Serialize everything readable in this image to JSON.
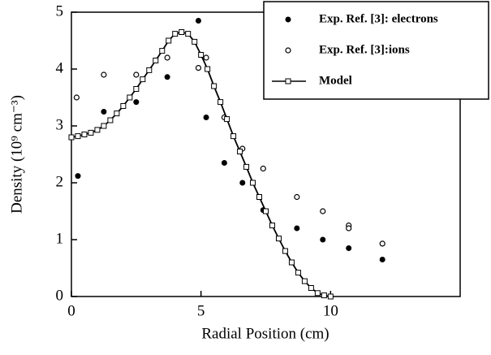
{
  "chart_data": {
    "type": "scatter",
    "xlabel": "Radial Position (cm)",
    "ylabel": "Density (10⁹ cm⁻³)",
    "xlim": [
      0,
      15
    ],
    "xticks": [
      0,
      5,
      10
    ],
    "ylim": [
      0,
      5
    ],
    "yticks": [
      0,
      1,
      2,
      3,
      4,
      5
    ],
    "legend": "upper right",
    "series": [
      {
        "name": "Exp. Ref. [3]: electrons",
        "color": "#000000",
        "marker": "filled-circle",
        "x": [
          0.25,
          1.25,
          2.5,
          3.7,
          4.9,
          5.2,
          5.9,
          6.6,
          7.4,
          8.7,
          9.7,
          10.7,
          12.0
        ],
        "values": [
          2.12,
          3.25,
          3.42,
          3.86,
          4.85,
          3.15,
          2.35,
          2.0,
          1.52,
          1.2,
          1.0,
          0.85,
          0.65
        ]
      },
      {
        "name": "Exp. Ref. [3]:ions",
        "color": "#000000",
        "marker": "open-circle",
        "x": [
          0.2,
          1.25,
          2.5,
          3.7,
          4.9,
          5.2,
          5.9,
          6.6,
          7.4,
          8.7,
          9.7,
          10.7,
          10.7,
          12.0
        ],
        "values": [
          3.5,
          3.9,
          3.9,
          4.2,
          4.02,
          4.2,
          3.15,
          2.6,
          2.25,
          1.75,
          1.5,
          1.25,
          1.2,
          0.93
        ]
      },
      {
        "name": "Model",
        "color": "#000000",
        "marker": "line-square",
        "x": [
          0,
          0.25,
          0.5,
          0.75,
          1,
          1.25,
          1.5,
          1.75,
          2,
          2.25,
          2.5,
          2.75,
          3,
          3.25,
          3.5,
          3.75,
          4,
          4.25,
          4.5,
          4.75,
          5,
          5.25,
          5.5,
          5.75,
          6,
          6.25,
          6.5,
          6.75,
          7,
          7.25,
          7.5,
          7.75,
          8,
          8.25,
          8.5,
          8.75,
          9,
          9.25,
          9.5,
          9.75,
          10
        ],
        "values": [
          2.8,
          2.82,
          2.85,
          2.88,
          2.93,
          3.0,
          3.1,
          3.22,
          3.35,
          3.5,
          3.65,
          3.82,
          3.98,
          4.15,
          4.32,
          4.5,
          4.62,
          4.65,
          4.62,
          4.48,
          4.25,
          4.0,
          3.7,
          3.42,
          3.12,
          2.82,
          2.55,
          2.28,
          2.0,
          1.75,
          1.5,
          1.25,
          1.02,
          0.8,
          0.6,
          0.42,
          0.27,
          0.15,
          0.06,
          0.02,
          0
        ]
      }
    ]
  }
}
